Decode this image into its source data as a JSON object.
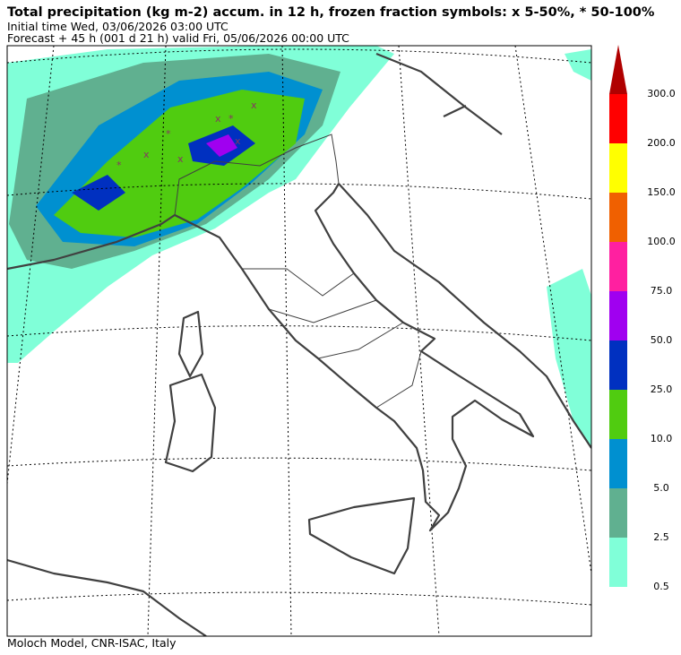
{
  "header": {
    "title": "Total precipitation (kg m-2) accum. in 12 h, frozen fraction symbols: x 5-50%, * 50-100%",
    "initial_time": "Initial time  Wed, 03/06/2026  03:00 UTC",
    "forecast": "Forecast  +  45 h  (001 d 21 h)  valid Fri, 05/06/2026 00:00 UTC"
  },
  "footer": "Moloch Model, CNR-ISAC, Italy",
  "colorbar": {
    "levels": [
      {
        "value": 0.5,
        "label": "0.5"
      },
      {
        "value": 2.5,
        "label": "2.5"
      },
      {
        "value": 5,
        "label": "5.0"
      },
      {
        "value": 10,
        "label": "10.0"
      },
      {
        "value": 25,
        "label": "25.0"
      },
      {
        "value": 50,
        "label": "50.0"
      },
      {
        "value": 75,
        "label": "75.0"
      },
      {
        "value": 100,
        "label": "100.0"
      },
      {
        "value": 150,
        "label": "150.0"
      },
      {
        "value": 200,
        "label": "200.0"
      },
      {
        "value": 300,
        "label": "300.0"
      }
    ],
    "colors": [
      "#80ffd8",
      "#60b090",
      "#0090d0",
      "#50cc10",
      "#0030c0",
      "#a000f0",
      "#ff20a0",
      "#f06000",
      "#ffff00",
      "#ff0000"
    ],
    "over_color": "#b00000"
  }
}
